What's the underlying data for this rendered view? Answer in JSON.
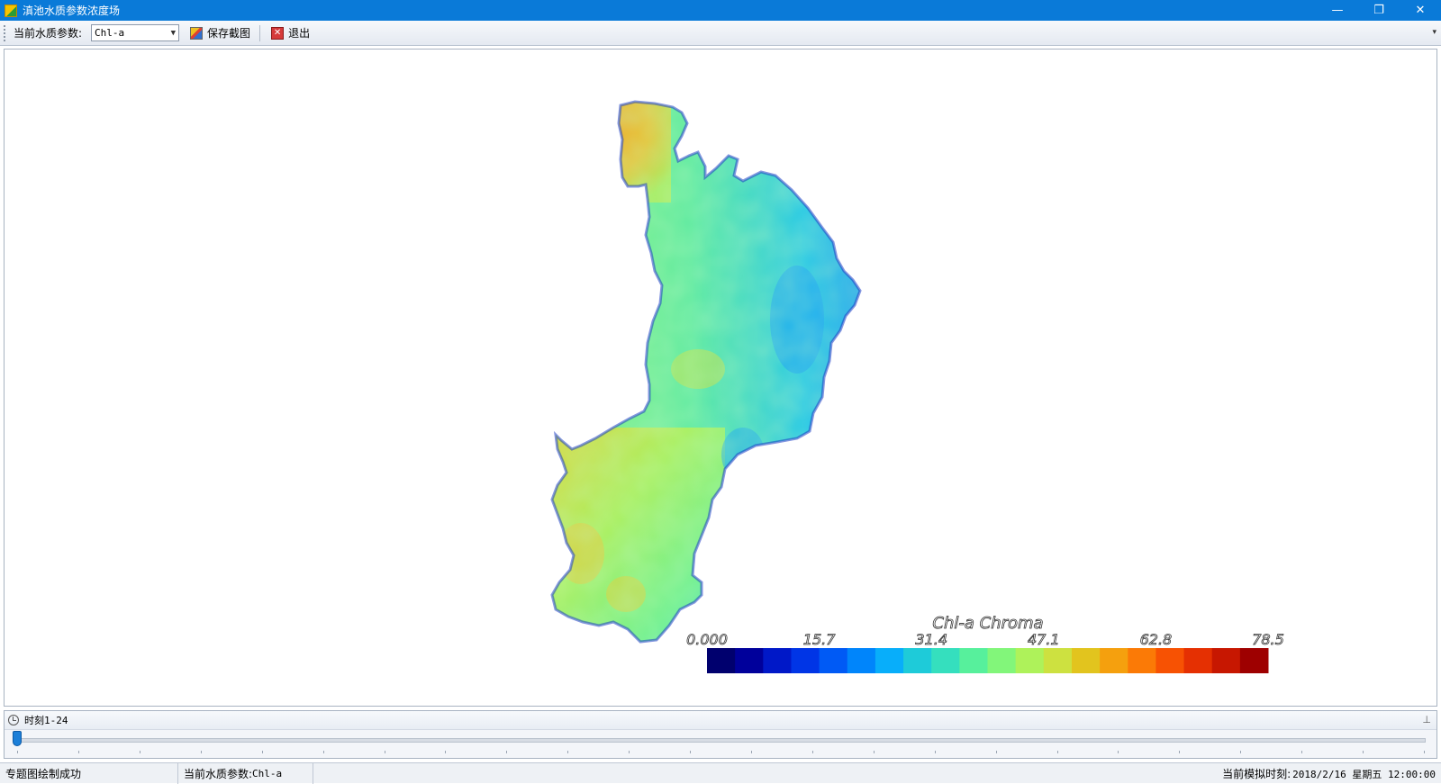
{
  "window": {
    "title": "滇池水质参数浓度场",
    "minimize_glyph": "—",
    "restore_glyph": "❐",
    "close_glyph": "✕"
  },
  "toolbar": {
    "param_label": "当前水质参数:",
    "param_value": "Chl-a",
    "save_label": "保存截图",
    "exit_label": "退出"
  },
  "map": {
    "legend_title": "Chl-a Chroma",
    "legend_ticks": [
      "0.000",
      "15.7",
      "31.4",
      "47.1",
      "62.8",
      "78.5"
    ],
    "legend_colors": [
      "#00006e",
      "#00009b",
      "#0018c8",
      "#0035e6",
      "#005af5",
      "#0085fb",
      "#08aefa",
      "#1ecbd9",
      "#35dfbe",
      "#57f09c",
      "#82f67a",
      "#aef25a",
      "#cde140",
      "#e2c41e",
      "#f5a00e",
      "#fb7a06",
      "#f75203",
      "#e53002",
      "#c71701",
      "#9e0000"
    ],
    "max_value": 78.5
  },
  "time_panel": {
    "label": "时刻1-24",
    "current_index": 1,
    "total": 24
  },
  "status": {
    "message": "专题图绘制成功",
    "param_text": "当前水质参数: ",
    "param_value": "Chl-a",
    "sim_label": "当前模拟时刻:",
    "sim_value": "2018/2/16 星期五 12:00:00"
  }
}
